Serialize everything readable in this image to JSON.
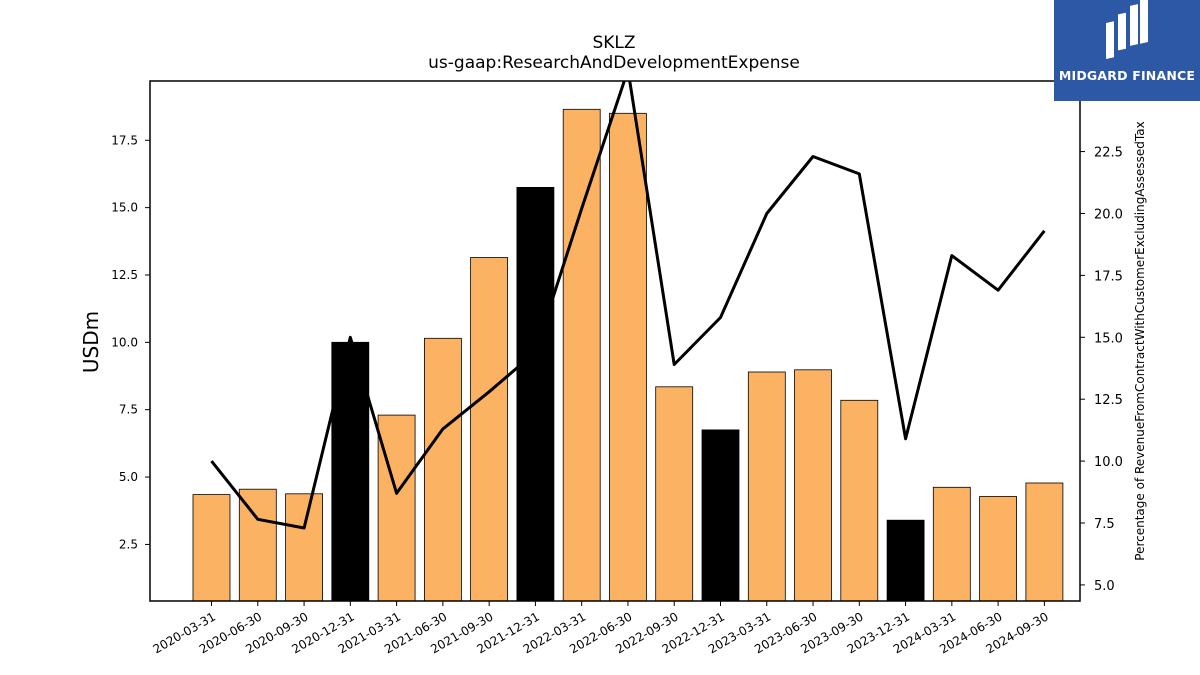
{
  "chart_data": {
    "type": "bar",
    "title": "SKLZ",
    "subtitle": "us-gaap:ResearchAndDevelopmentExpense",
    "xlabel": "",
    "ylabel": "USDm",
    "y2label": "Percentage of RevenueFromContractWithCustomerExcludingAssessedTax",
    "categories": [
      "2020-03-31",
      "2020-06-30",
      "2020-09-30",
      "2020-12-31",
      "2021-03-31",
      "2021-06-30",
      "2021-09-30",
      "2021-12-31",
      "2022-03-31",
      "2022-06-30",
      "2022-09-30",
      "2022-12-31",
      "2023-03-31",
      "2023-06-30",
      "2023-09-30",
      "2023-12-31",
      "2024-03-31",
      "2024-06-30",
      "2024-09-30"
    ],
    "series": [
      {
        "name": "",
        "type": "bar",
        "axis": "left",
        "values": [
          4.35,
          4.55,
          4.38,
          10.0,
          7.3,
          10.15,
          13.15,
          15.75,
          18.65,
          18.5,
          8.35,
          6.75,
          8.9,
          8.98,
          7.85,
          3.4,
          4.62,
          4.28,
          4.78
        ],
        "colors": [
          "#fbb263",
          "#fbb263",
          "#fbb263",
          "#000000",
          "#fbb263",
          "#fbb263",
          "#fbb263",
          "#000000",
          "#fbb263",
          "#fbb263",
          "#fbb263",
          "#000000",
          "#fbb263",
          "#fbb263",
          "#fbb263",
          "#000000",
          "#fbb263",
          "#fbb263",
          "#fbb263"
        ]
      },
      {
        "name": "",
        "type": "line",
        "axis": "right",
        "color": "#000000",
        "values": [
          10.0,
          7.65,
          7.3,
          15.0,
          8.7,
          11.3,
          12.8,
          14.4,
          20.2,
          25.8,
          13.9,
          15.8,
          20.0,
          22.3,
          21.6,
          10.9,
          18.3,
          16.9,
          19.3
        ]
      }
    ],
    "ylim": [
      0.4,
      19.7
    ],
    "yticks": [
      2.5,
      5.0,
      7.5,
      10.0,
      12.5,
      15.0,
      17.5
    ],
    "ytick_labels": [
      "2.5",
      "5.0",
      "7.5",
      "10.0",
      "12.5",
      "15.0",
      "17.5"
    ],
    "y2lim": [
      4.35,
      25.35
    ],
    "y2ticks": [
      5.0,
      7.5,
      10.0,
      12.5,
      15.0,
      17.5,
      20.0,
      22.5
    ],
    "y2tick_labels": [
      "5.0",
      "7.5",
      "10.0",
      "12.5",
      "15.0",
      "17.5",
      "20.0",
      "22.5"
    ],
    "grid": false,
    "legend": "none"
  },
  "logo": {
    "text": "MIDGARD FINANCE",
    "color": "#2d58a6"
  }
}
